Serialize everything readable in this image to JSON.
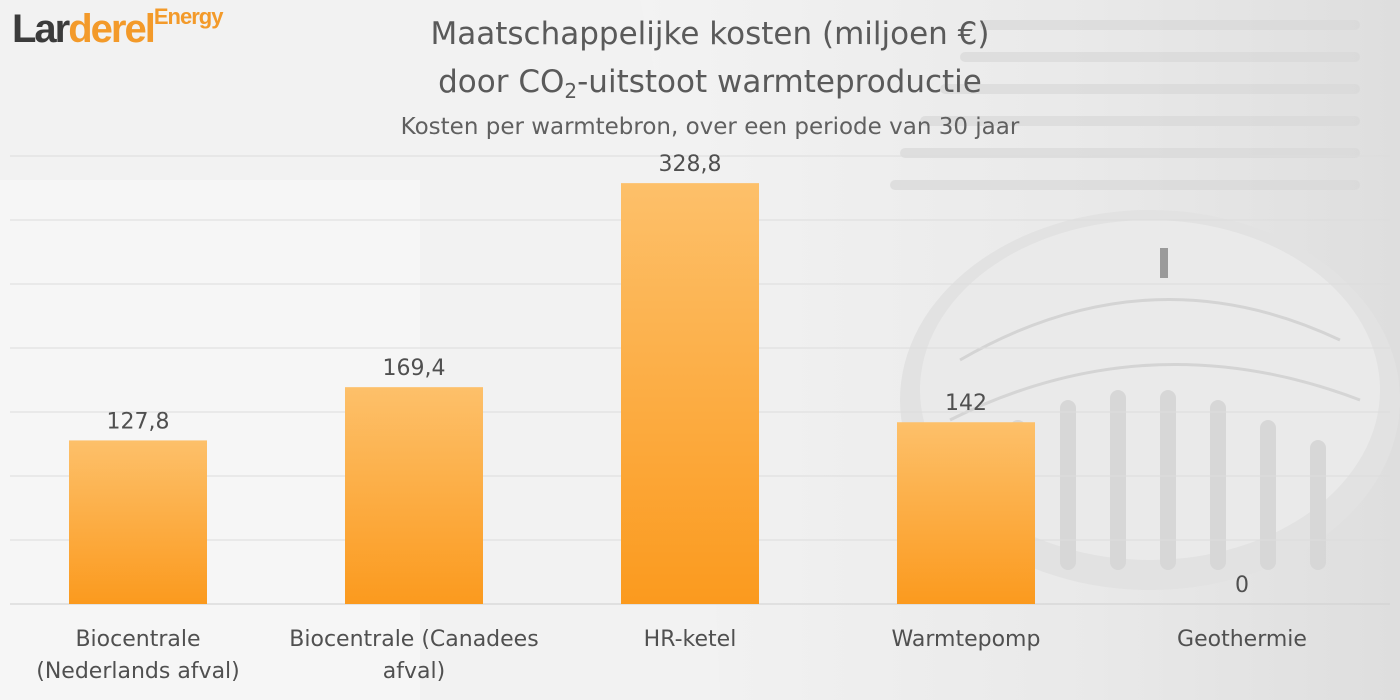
{
  "logo": {
    "part1": "Lar",
    "part2": "derel",
    "part3": "",
    "part4": "Energy"
  },
  "title": {
    "line1": "Maatschappelijke kosten (miljoen €)",
    "line2_pre": "door CO",
    "line2_sub": "2",
    "line2_post": "-uitstoot warmteproductie",
    "subtitle": "Kosten per warmtebron, over een periode van 30 jaar"
  },
  "colors": {
    "bar_top": "#fdc06a",
    "bar_bottom": "#fb9a1e",
    "grid": "#dcdcdc",
    "label": "#505050"
  },
  "chart_data": {
    "type": "bar",
    "categories": [
      "Biocentrale (Nederlands afval)",
      "Biocentrale (Canadees afval)",
      "HR-ketel",
      "Warmtepomp",
      "Geothermie"
    ],
    "category_lines": [
      [
        "Biocentrale",
        "(Nederlands afval)"
      ],
      [
        "Biocentrale (Canadees",
        "afval)"
      ],
      [
        "HR-ketel"
      ],
      [
        "Warmtepomp"
      ],
      [
        "Geothermie"
      ]
    ],
    "values": [
      127.8,
      169.4,
      328.8,
      142,
      0
    ],
    "value_labels": [
      "127,8",
      "169,4",
      "328,8",
      "142",
      "0"
    ],
    "ylim": [
      0,
      350
    ],
    "grid": true,
    "legend": "none"
  }
}
